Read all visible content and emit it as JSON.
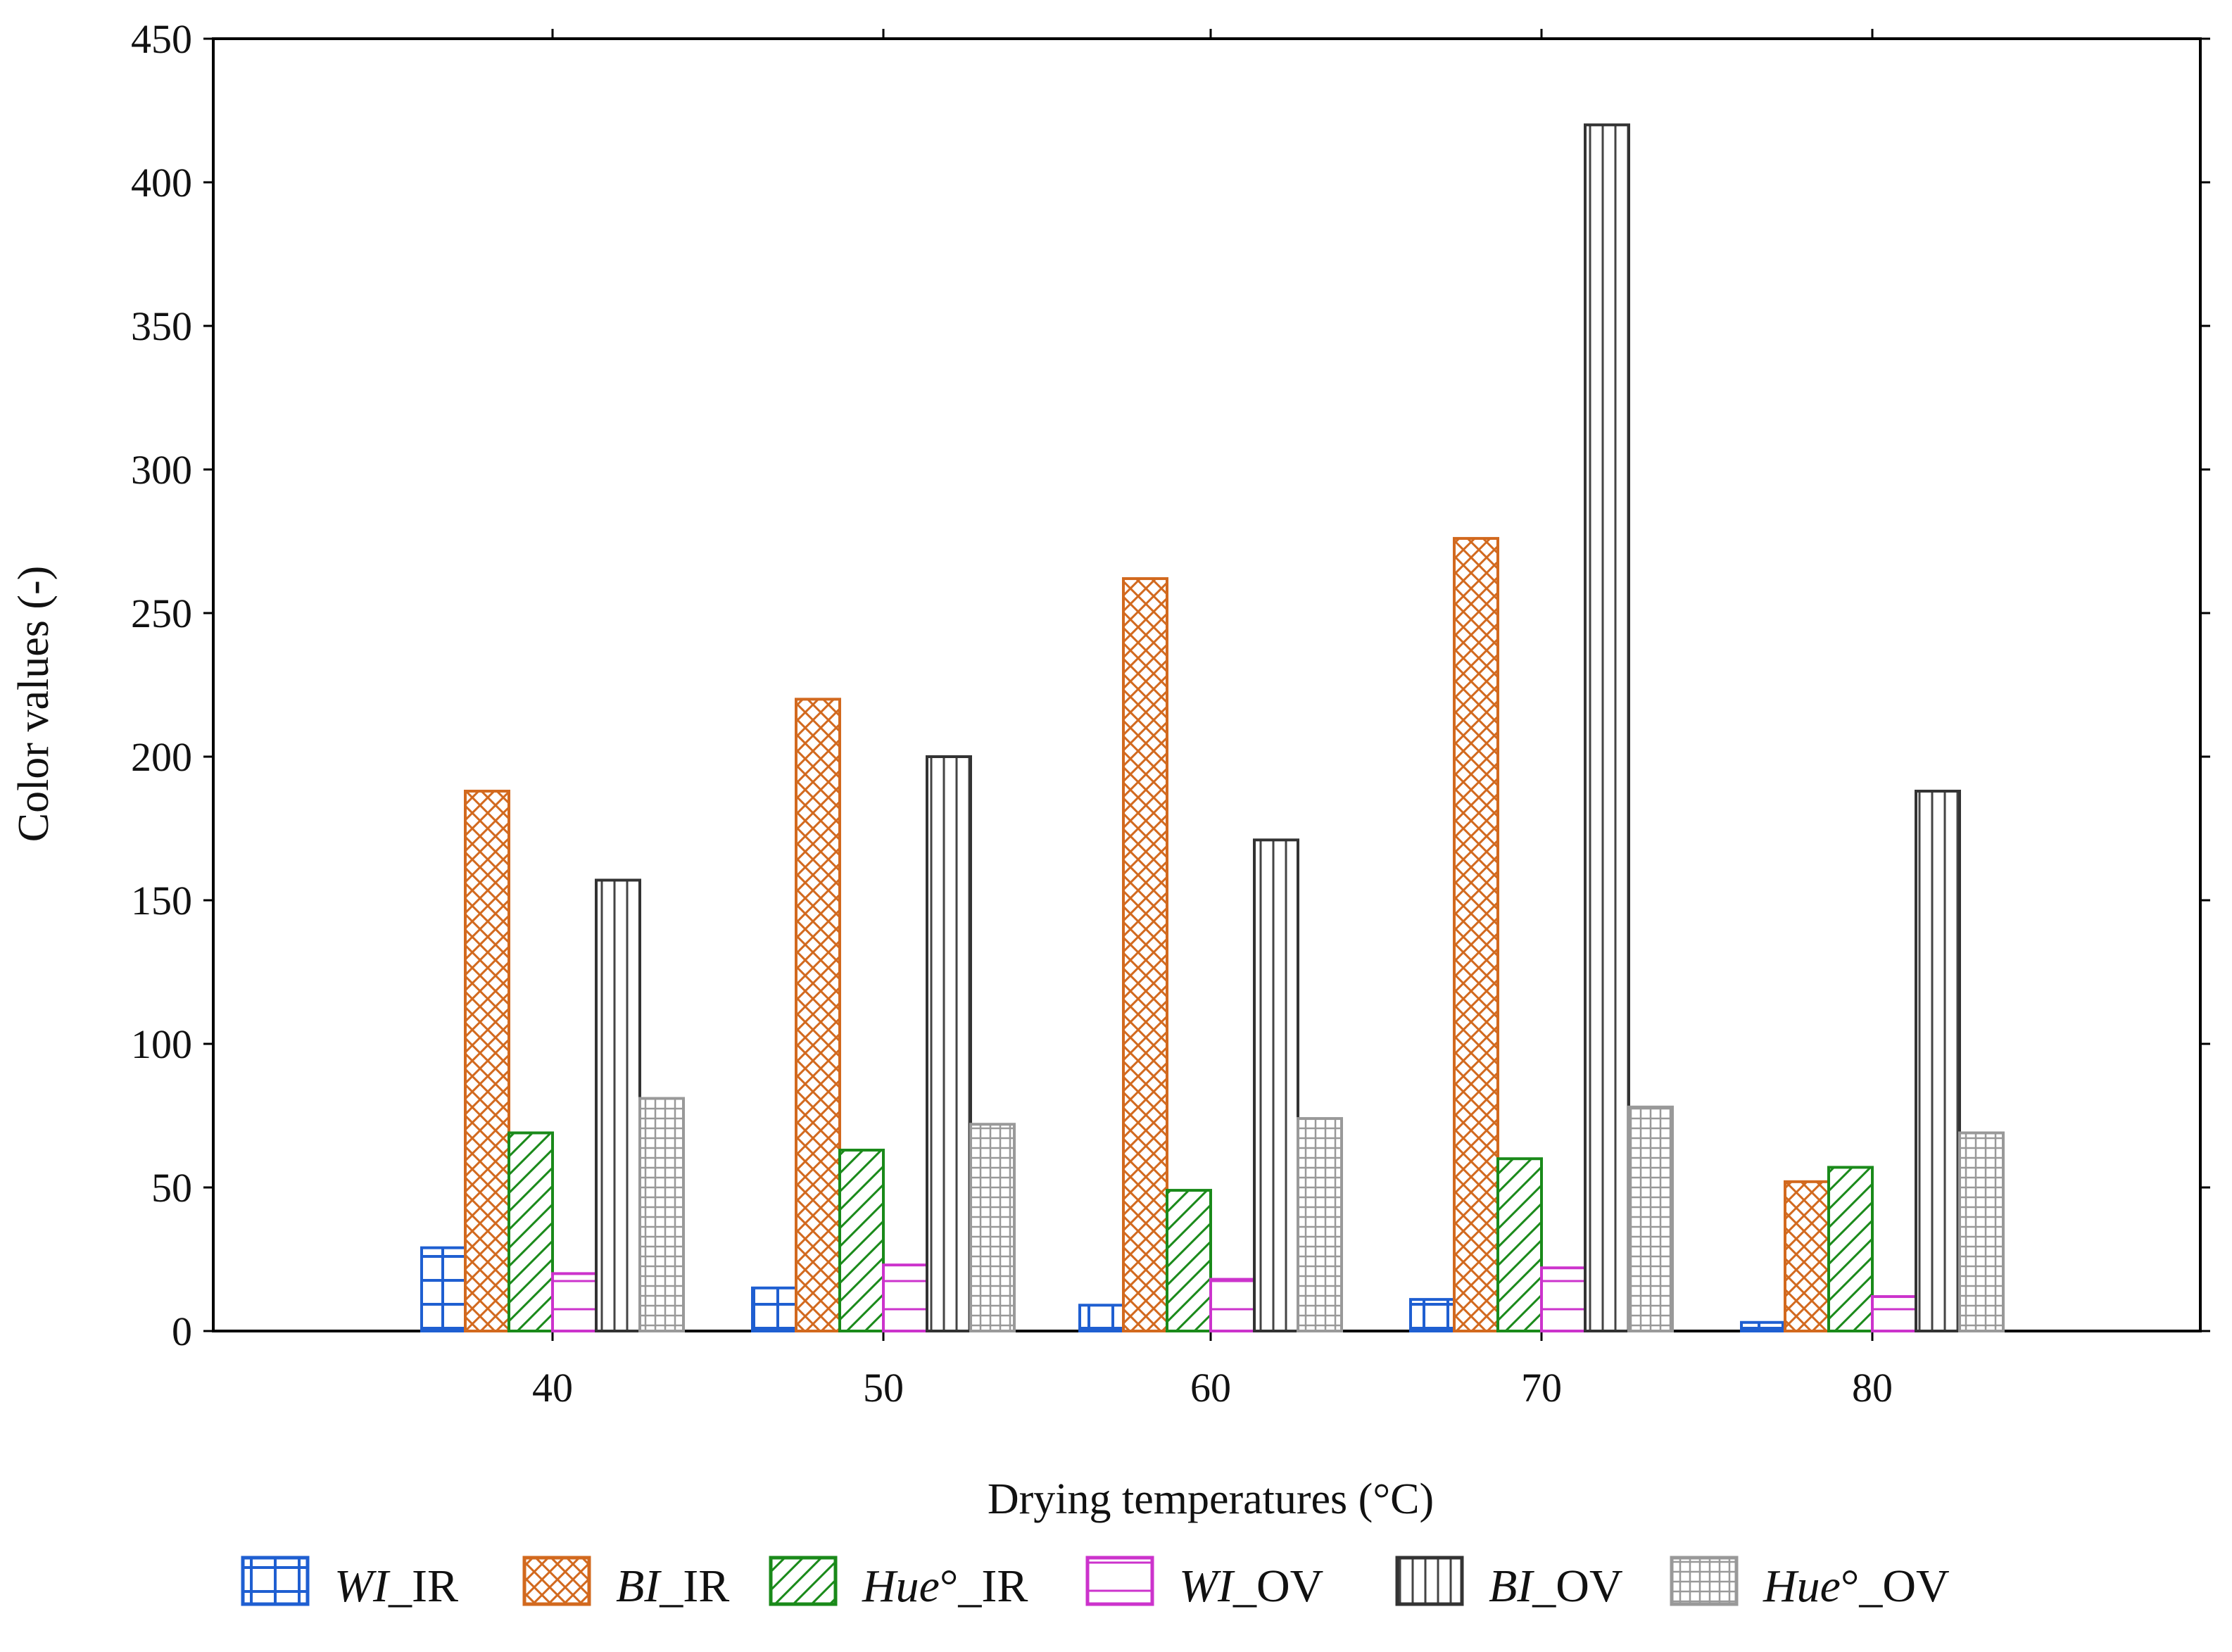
{
  "chart_data": {
    "type": "bar",
    "xlabel": "Drying temperatures (°C)",
    "ylabel": "Color values (-)",
    "ylim": [
      0,
      450
    ],
    "yticks": [
      0,
      50,
      100,
      150,
      200,
      250,
      300,
      350,
      400,
      450
    ],
    "categories": [
      "40",
      "50",
      "60",
      "70",
      "80"
    ],
    "grid": false,
    "legend_position": "bottom",
    "series": [
      {
        "name": "WI_IR",
        "legend_italic": "WI",
        "legend_suffix": "_IR",
        "color": "#1f5fd1",
        "pattern": "grid-large",
        "values": [
          29,
          15,
          9,
          11,
          3
        ]
      },
      {
        "name": "BI_IR",
        "legend_italic": "BI",
        "legend_suffix": "_IR",
        "color": "#d2691e",
        "pattern": "crosshatch",
        "values": [
          188,
          220,
          262,
          276,
          52
        ]
      },
      {
        "name": "Hue°_IR",
        "legend_italic": "Hue",
        "legend_suffix": "°_IR",
        "color": "#1a8a1a",
        "pattern": "diagonal",
        "values": [
          69,
          63,
          49,
          60,
          57
        ]
      },
      {
        "name": "WI_OV",
        "legend_italic": "WI",
        "legend_suffix": "_OV",
        "color": "#cc33cc",
        "pattern": "hline",
        "values": [
          20,
          23,
          18,
          22,
          12
        ]
      },
      {
        "name": "BI_OV",
        "legend_italic": "BI",
        "legend_suffix": "_OV",
        "color": "#333333",
        "pattern": "vline",
        "values": [
          157,
          200,
          171,
          420,
          188
        ]
      },
      {
        "name": "Hue°_OV",
        "legend_italic": "Hue",
        "legend_suffix": "°_OV",
        "color": "#999999",
        "pattern": "grid-small",
        "values": [
          81,
          72,
          74,
          78,
          69
        ]
      }
    ]
  }
}
